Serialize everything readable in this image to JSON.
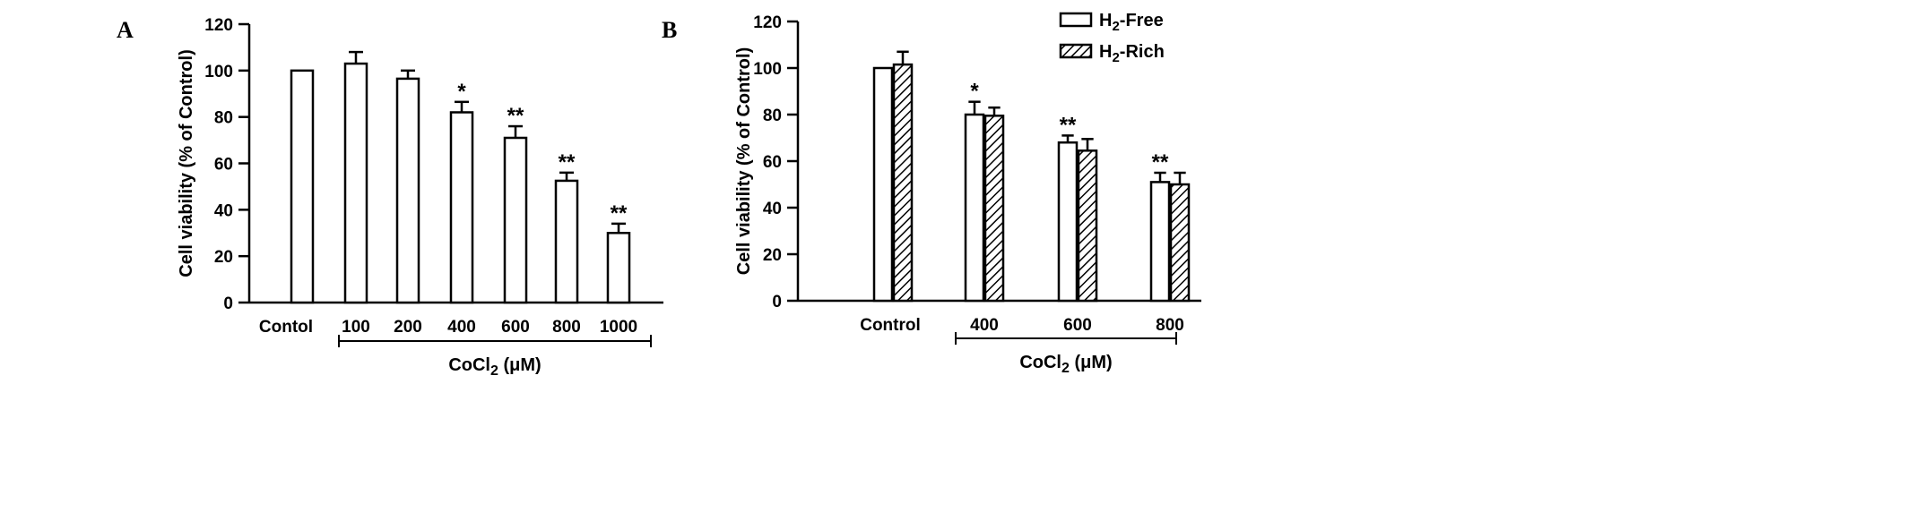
{
  "chart_data": [
    {
      "type": "bar",
      "panel": "A",
      "ylabel": "Cell viability (% of Control)",
      "xlabel": "CoCl2 (μM)",
      "xlabel_main": "CoCl",
      "xlabel_sub": "2",
      "xlabel_unit": " (μM)",
      "ylim": [
        0,
        120
      ],
      "yticks": [
        0,
        20,
        40,
        60,
        80,
        100,
        120
      ],
      "categories": [
        "Contol",
        "100",
        "200",
        "400",
        "600",
        "800",
        "1000"
      ],
      "values": [
        100,
        103,
        96.5,
        82,
        71,
        52.5,
        30
      ],
      "errors": [
        0,
        5,
        3.5,
        4.5,
        5,
        3.5,
        4
      ],
      "significance": [
        "",
        "",
        "",
        "*",
        "**",
        "**",
        "**"
      ]
    },
    {
      "type": "bar",
      "panel": "B",
      "ylabel": "Cell viability (% of Control)",
      "xlabel": "CoCl2 (μM)",
      "xlabel_main": "CoCl",
      "xlabel_sub": "2",
      "xlabel_unit": " (μM)",
      "ylim": [
        0,
        120
      ],
      "yticks": [
        0,
        20,
        40,
        60,
        80,
        100,
        120
      ],
      "categories": [
        "Control",
        "400",
        "600",
        "800"
      ],
      "legend_position": "top-right",
      "series": [
        {
          "name": "H2-Free",
          "name_main": "H",
          "name_sub": "2",
          "name_rest": "-Free",
          "pattern": "open",
          "values": [
            100,
            80,
            68,
            51
          ],
          "errors": [
            0,
            5.5,
            3,
            4
          ],
          "significance": [
            "",
            "*",
            "**",
            "**"
          ]
        },
        {
          "name": "H2-Rich",
          "name_main": "H",
          "name_sub": "2",
          "name_rest": "-Rich",
          "pattern": "hatched",
          "values": [
            101.5,
            79.5,
            64.5,
            50
          ],
          "errors": [
            5.5,
            3.5,
            5,
            5
          ],
          "significance": [
            "",
            "",
            "",
            ""
          ]
        }
      ]
    }
  ]
}
